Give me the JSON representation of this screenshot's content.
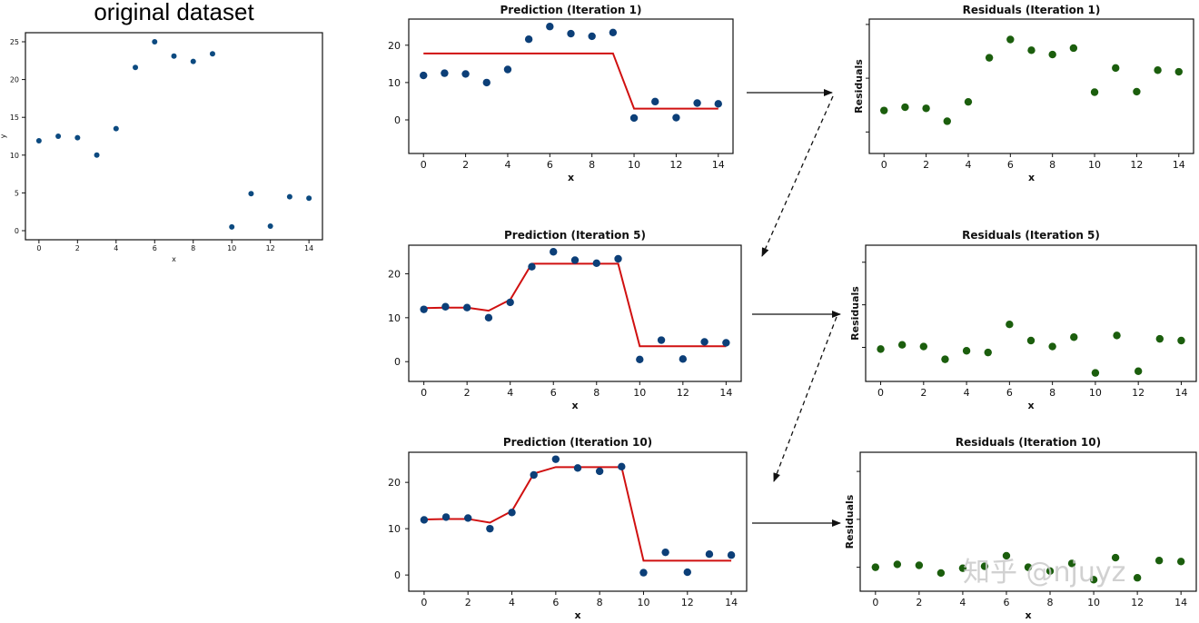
{
  "watermark": "知乎 @njuyz",
  "chart_data": [
    {
      "id": "original",
      "type": "scatter",
      "title": "original dataset",
      "xlabel": "x",
      "ylabel": "y",
      "xlim": [
        -0.7,
        14.7
      ],
      "ylim": [
        -1.2,
        26.2
      ],
      "xticks": [
        0,
        2,
        4,
        6,
        8,
        10,
        12,
        14
      ],
      "yticks": [
        0,
        5,
        10,
        15,
        20,
        25
      ],
      "x": [
        0,
        1,
        2,
        3,
        4,
        5,
        6,
        7,
        8,
        9,
        10,
        11,
        12,
        13,
        14
      ],
      "y": [
        11.9,
        12.5,
        12.3,
        10.0,
        13.5,
        21.6,
        25.0,
        23.1,
        22.4,
        23.4,
        0.5,
        4.9,
        0.6,
        4.5,
        4.3
      ],
      "point_color": "#0c4a80"
    },
    {
      "id": "pred1",
      "type": "scatter+line",
      "title": "Prediction (Iteration 1)",
      "xlabel": "x",
      "ylabel": "",
      "xlim": [
        -0.7,
        14.7
      ],
      "ylim": [
        -9,
        27
      ],
      "xticks": [
        0,
        2,
        4,
        6,
        8,
        10,
        12,
        14
      ],
      "yticks": [
        0,
        10,
        20
      ],
      "x": [
        0,
        1,
        2,
        3,
        4,
        5,
        6,
        7,
        8,
        9,
        10,
        11,
        12,
        13,
        14
      ],
      "y": [
        11.9,
        12.5,
        12.3,
        10.0,
        13.5,
        21.6,
        25.0,
        23.1,
        22.4,
        23.4,
        0.5,
        4.9,
        0.6,
        4.5,
        4.3
      ],
      "line_x": [
        0,
        9,
        10,
        14
      ],
      "line_y": [
        17.8,
        17.8,
        3.0,
        3.0
      ],
      "point_color": "#0c3f78",
      "line_color": "#d01010"
    },
    {
      "id": "resid1",
      "type": "scatter",
      "title": "Residuals (Iteration 1)",
      "xlabel": "x",
      "ylabel": "Residuals",
      "xlim": [
        -0.7,
        14.7
      ],
      "ylim": [
        -14,
        11
      ],
      "xticks": [
        0,
        2,
        4,
        6,
        8,
        10,
        12,
        14
      ],
      "yticks": [
        -10,
        0,
        10
      ],
      "show_ytick_labels": false,
      "x": [
        0,
        1,
        2,
        3,
        4,
        5,
        6,
        7,
        8,
        9,
        10,
        11,
        12,
        13,
        14
      ],
      "y": [
        -6.0,
        -5.4,
        -5.6,
        -8.0,
        -4.4,
        3.8,
        7.2,
        5.2,
        4.4,
        5.6,
        -2.6,
        1.9,
        -2.5,
        1.5,
        1.2
      ],
      "point_color": "#1b5e0d"
    },
    {
      "id": "pred5",
      "type": "scatter+line",
      "title": "Prediction (Iteration 5)",
      "xlabel": "x",
      "ylabel": "",
      "xlim": [
        -0.7,
        14.7
      ],
      "ylim": [
        -4.5,
        26.5
      ],
      "xticks": [
        0,
        2,
        4,
        6,
        8,
        10,
        12,
        14
      ],
      "yticks": [
        0,
        10,
        20
      ],
      "x": [
        0,
        1,
        2,
        3,
        4,
        5,
        6,
        7,
        8,
        9,
        10,
        11,
        12,
        13,
        14
      ],
      "y": [
        11.9,
        12.5,
        12.3,
        10.0,
        13.5,
        21.6,
        25.0,
        23.1,
        22.4,
        23.4,
        0.5,
        4.9,
        0.6,
        4.5,
        4.3
      ],
      "line_x": [
        0,
        1,
        2,
        3,
        4,
        5,
        6,
        7,
        8,
        9,
        10,
        11,
        12,
        13,
        14
      ],
      "line_y": [
        12.2,
        12.3,
        12.3,
        11.6,
        14.1,
        22.3,
        22.3,
        22.3,
        22.3,
        22.3,
        3.5,
        3.5,
        3.5,
        3.5,
        3.5
      ],
      "point_color": "#0c3f78",
      "line_color": "#d01010"
    },
    {
      "id": "resid5",
      "type": "scatter",
      "title": "Residuals (Iteration 5)",
      "xlabel": "x",
      "ylabel": "Residuals",
      "xlim": [
        -0.7,
        14.7
      ],
      "ylim": [
        -4,
        12
      ],
      "xticks": [
        0,
        2,
        4,
        6,
        8,
        10,
        12,
        14
      ],
      "yticks": [
        0,
        5,
        10
      ],
      "show_ytick_labels": false,
      "x": [
        0,
        1,
        2,
        3,
        4,
        5,
        6,
        7,
        8,
        9,
        10,
        11,
        12,
        13,
        14
      ],
      "y": [
        -0.2,
        0.3,
        0.1,
        -1.4,
        -0.4,
        -0.6,
        2.7,
        0.8,
        0.1,
        1.2,
        -3.0,
        1.4,
        -2.8,
        1.0,
        0.8
      ],
      "point_color": "#1b5e0d"
    },
    {
      "id": "pred10",
      "type": "scatter+line",
      "title": "Prediction (Iteration 10)",
      "xlabel": "x",
      "ylabel": "",
      "xlim": [
        -0.7,
        14.7
      ],
      "ylim": [
        -3.5,
        26.5
      ],
      "xticks": [
        0,
        2,
        4,
        6,
        8,
        10,
        12,
        14
      ],
      "yticks": [
        0,
        10,
        20
      ],
      "x": [
        0,
        1,
        2,
        3,
        4,
        5,
        6,
        7,
        8,
        9,
        10,
        11,
        12,
        13,
        14
      ],
      "y": [
        11.9,
        12.5,
        12.3,
        10.0,
        13.5,
        21.6,
        25.0,
        23.1,
        22.4,
        23.4,
        0.5,
        4.9,
        0.6,
        4.5,
        4.3
      ],
      "line_x": [
        0,
        1,
        2,
        3,
        4,
        5,
        6,
        7,
        8,
        9,
        10,
        11,
        12,
        13,
        14
      ],
      "line_y": [
        12.0,
        12.1,
        12.1,
        11.3,
        13.8,
        21.9,
        23.3,
        23.3,
        23.3,
        23.3,
        3.1,
        3.1,
        3.1,
        3.1,
        3.1
      ],
      "point_color": "#0c3f78",
      "line_color": "#d01010"
    },
    {
      "id": "resid10",
      "type": "scatter",
      "title": "Residuals (Iteration 10)",
      "xlabel": "x",
      "ylabel": "Residuals",
      "xlim": [
        -0.7,
        14.7
      ],
      "ylim": [
        -2.5,
        12
      ],
      "xticks": [
        0,
        2,
        4,
        6,
        8,
        10,
        12,
        14
      ],
      "yticks": [
        0,
        5,
        10
      ],
      "show_ytick_labels": false,
      "x": [
        0,
        1,
        2,
        3,
        4,
        5,
        6,
        7,
        8,
        9,
        10,
        11,
        12,
        13,
        14
      ],
      "y": [
        0.0,
        0.3,
        0.2,
        -0.6,
        -0.1,
        0.1,
        1.2,
        0.0,
        -0.4,
        0.4,
        -1.3,
        1.0,
        -1.1,
        0.7,
        0.6
      ],
      "point_color": "#1b5e0d"
    }
  ]
}
